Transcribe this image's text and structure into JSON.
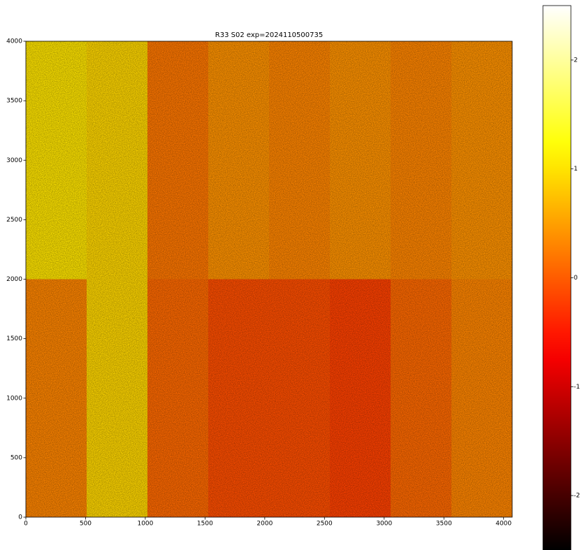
{
  "chart_data": {
    "type": "heatmap",
    "title": "R33 S02 exp=2024110500735",
    "colormap": "hot",
    "xbins": [
      0,
      509,
      1018,
      1527,
      2036,
      2545,
      3054,
      3563,
      4072
    ],
    "ybins": [
      0,
      2000,
      4000
    ],
    "values": [
      [
        0.3,
        0.9,
        0.1,
        -0.1,
        -0.1,
        -0.2,
        0.1,
        0.3
      ],
      [
        1.0,
        0.9,
        0.2,
        0.4,
        0.3,
        0.4,
        0.3,
        0.4
      ]
    ],
    "xlim": [
      0,
      4072
    ],
    "ylim": [
      0,
      4000
    ],
    "xticks": [
      0,
      500,
      1000,
      1500,
      2000,
      2500,
      3000,
      3500,
      4000
    ],
    "yticks": [
      0,
      500,
      1000,
      1500,
      2000,
      2500,
      3000,
      3500,
      4000
    ],
    "clim": [
      -2.5,
      2.5
    ],
    "cticks": [
      -2,
      -1,
      0,
      1,
      2
    ]
  }
}
